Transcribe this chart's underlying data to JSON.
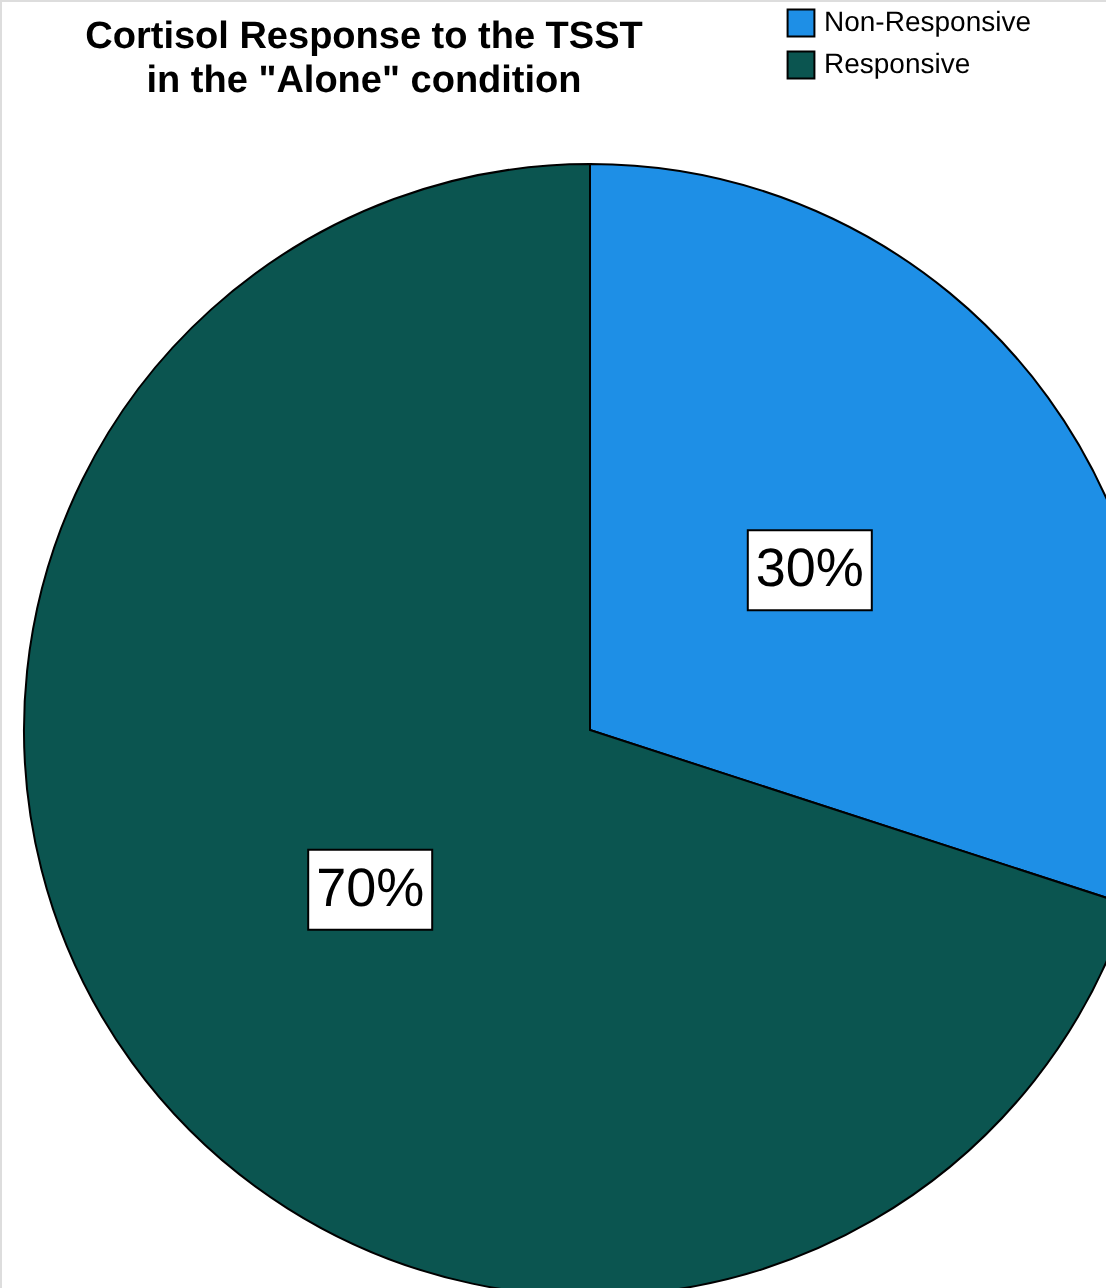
{
  "chart_data": {
    "type": "pie",
    "title": "Cortisol Response to the TSST\nin the \"Alone\" condition",
    "categories": [
      "Non-Responsive",
      "Responsive"
    ],
    "values": [
      30,
      70
    ],
    "colors": [
      "#1e8fe6",
      "#0b5550"
    ],
    "value_labels": [
      "30%",
      "70%"
    ],
    "legend": "top right"
  }
}
